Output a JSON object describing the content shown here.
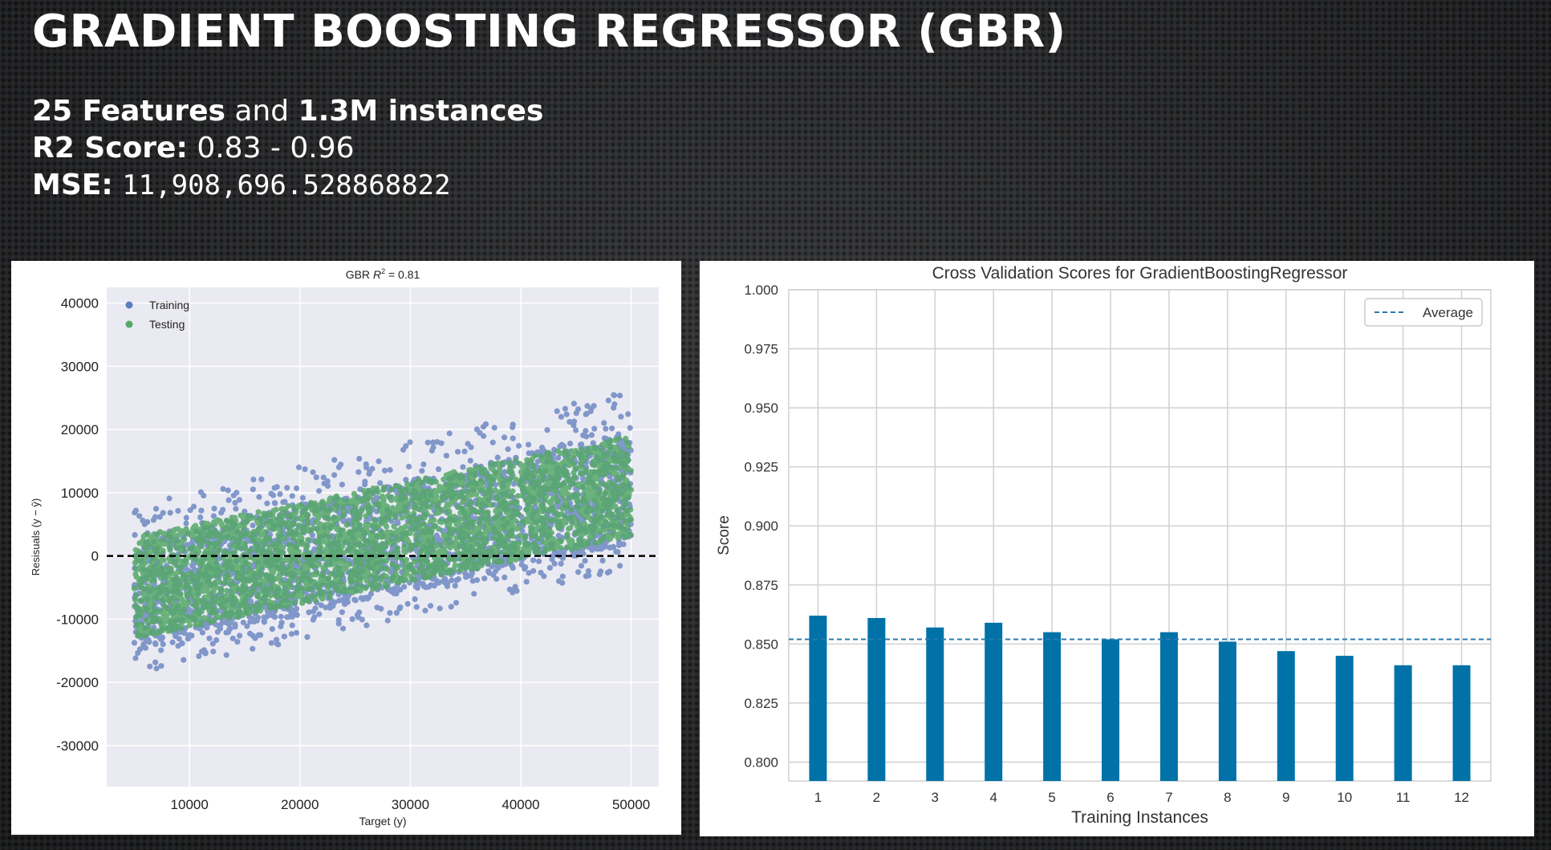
{
  "slide": {
    "title": "GRADIENT BOOSTING REGRESSOR (GBR)",
    "line1": {
      "features": "25 Features",
      "and": "and",
      "instances": "1.3M instances"
    },
    "line2": {
      "label": "R2 Score:",
      "value": "0.83 - 0.96"
    },
    "line3": {
      "label": "MSE:",
      "value": "11,908,696.528868822"
    }
  },
  "colors": {
    "training": "#5f7cbd",
    "testing": "#55a868",
    "bar": "#0072a8",
    "average_line": "#2a7ab0",
    "plot_bg_left": "#eaeaf2",
    "zero_line": "#000000"
  },
  "chart_data": [
    {
      "type": "scatter",
      "title_prefix": "GBR ",
      "title_r2": "R",
      "title_exp": "2",
      "title_suffix": " = 0.81",
      "xlabel": "Target (y)",
      "ylabel": "Resisuals (y − ŷ)",
      "xlim": [
        2500,
        52500
      ],
      "ylim": [
        -36500,
        42500
      ],
      "xticks": [
        10000,
        20000,
        30000,
        40000,
        50000
      ],
      "yticks": [
        40000,
        30000,
        20000,
        10000,
        0,
        -10000,
        -20000,
        -30000
      ],
      "grid": true,
      "legend_placement": "top-left",
      "zero_line": 0,
      "series": [
        {
          "name": "Training",
          "band_x": [
            5000,
            50000
          ],
          "band_lower_at": [
            -15000,
            2000
          ],
          "band_upper_at": [
            2000,
            20000
          ]
        },
        {
          "name": "Testing",
          "band_x": [
            5000,
            50000
          ],
          "band_lower_at": [
            -13000,
            3000
          ],
          "band_upper_at": [
            3000,
            19000
          ]
        }
      ]
    },
    {
      "type": "bar",
      "title": "Cross Validation Scores for GradientBoostingRegressor",
      "xlabel": "Training Instances",
      "ylabel": "Score",
      "categories": [
        "1",
        "2",
        "3",
        "4",
        "5",
        "6",
        "7",
        "8",
        "9",
        "10",
        "11",
        "12"
      ],
      "values": [
        0.862,
        0.861,
        0.857,
        0.859,
        0.855,
        0.852,
        0.855,
        0.851,
        0.847,
        0.845,
        0.841,
        0.841
      ],
      "average": 0.852,
      "legend_label": "Average",
      "legend_placement": "top-right",
      "ylim": [
        0.792,
        1.0
      ],
      "yticks": [
        1.0,
        0.975,
        0.95,
        0.925,
        0.9,
        0.875,
        0.85,
        0.825,
        0.8
      ],
      "ytick_labels": [
        "1.000",
        "0.975",
        "0.950",
        "0.925",
        "0.900",
        "0.875",
        "0.850",
        "0.825",
        "0.800"
      ],
      "grid": true
    }
  ]
}
